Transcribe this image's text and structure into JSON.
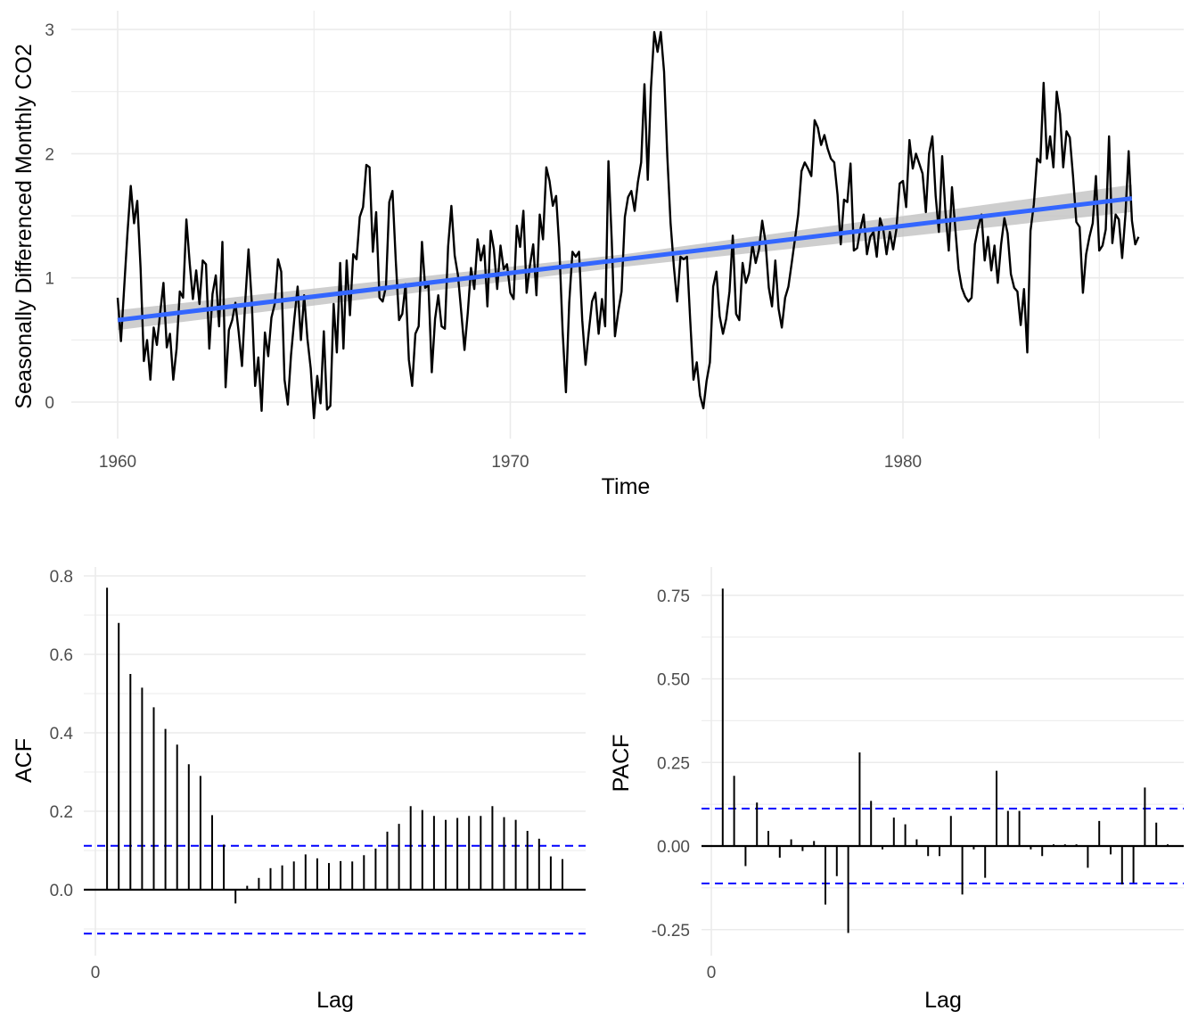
{
  "chart_data": [
    {
      "type": "line",
      "xlabel": "Time",
      "ylabel": "Seasonally Differenced Monthly CO2",
      "xlim": [
        1960,
        1986
      ],
      "ylim": [
        -0.2,
        3.1
      ],
      "x_ticks": [
        1960,
        1970,
        1980
      ],
      "x_tick_labels": [
        "1960",
        "1970",
        "1980"
      ],
      "y_ticks": [
        0,
        1,
        2,
        3
      ],
      "y_tick_labels": [
        "0",
        "1",
        "2",
        "3"
      ],
      "grid": true,
      "series_colors": [
        "#000000",
        "#3366FF",
        "#BEBEBE"
      ],
      "series": [
        {
          "start": 1960.0,
          "step": 0.08333,
          "values": [
            0.84,
            0.49,
            0.92,
            1.36,
            1.74,
            1.44,
            1.62,
            1.08,
            0.33,
            0.5,
            0.18,
            0.6,
            0.46,
            0.72,
            0.96,
            0.44,
            0.55,
            0.18,
            0.43,
            0.89,
            0.84,
            1.47,
            1.12,
            0.83,
            1.06,
            0.79,
            1.14,
            1.11,
            0.43,
            0.87,
            1.02,
            0.61,
            1.29,
            0.12,
            0.58,
            0.66,
            0.8,
            0.56,
            0.29,
            0.82,
            1.23,
            0.8,
            0.13,
            0.36,
            -0.07,
            0.56,
            0.37,
            0.68,
            0.79,
            1.15,
            1.05,
            0.18,
            -0.02,
            0.38,
            0.67,
            0.93,
            0.5,
            0.86,
            0.51,
            0.27,
            -0.13,
            0.21,
            -0.01,
            0.57,
            -0.06,
            -0.03,
            0.79,
            0.4,
            1.12,
            0.43,
            1.14,
            0.7,
            1.19,
            1.15,
            1.49,
            1.57,
            1.91,
            1.89,
            1.21,
            1.53,
            0.84,
            0.81,
            0.93,
            1.61,
            1.7,
            1.14,
            0.66,
            0.71,
            0.95,
            0.34,
            0.13,
            0.55,
            0.61,
            1.29,
            0.92,
            0.94,
            0.24,
            0.67,
            0.86,
            0.61,
            0.59,
            1.25,
            1.58,
            1.18,
            1.02,
            0.73,
            0.42,
            0.72,
            1.08,
            0.91,
            1.31,
            1.14,
            1.26,
            0.77,
            1.38,
            1.23,
            0.91,
            1.26,
            1.07,
            1.11,
            0.88,
            0.83,
            1.42,
            1.25,
            1.54,
            0.88,
            1.1,
            1.27,
            0.86,
            1.51,
            1.31,
            1.89,
            1.78,
            1.58,
            1.66,
            1.24,
            0.57,
            0.08,
            0.8,
            1.21,
            1.17,
            1.21,
            0.66,
            0.3,
            0.57,
            0.81,
            0.88,
            0.55,
            0.83,
            0.61,
            1.94,
            1.3,
            0.53,
            0.73,
            0.89,
            1.49,
            1.65,
            1.7,
            1.54,
            1.77,
            1.93,
            2.56,
            1.79,
            2.53,
            2.98,
            2.82,
            2.98,
            2.66,
            1.97,
            1.44,
            1.09,
            0.81,
            1.17,
            1.15,
            1.17,
            0.65,
            0.18,
            0.32,
            0.05,
            -0.05,
            0.17,
            0.32,
            0.93,
            1.05,
            0.69,
            0.55,
            0.67,
            0.89,
            1.34,
            0.71,
            0.66,
            1.12,
            0.96,
            1.04,
            1.27,
            1.12,
            1.23,
            1.46,
            1.29,
            0.92,
            0.77,
            1.14,
            0.75,
            0.6,
            0.84,
            0.93,
            1.12,
            1.31,
            1.51,
            1.86,
            1.93,
            1.88,
            1.82,
            2.27,
            2.21,
            2.07,
            2.15,
            2.04,
            1.96,
            1.93,
            1.67,
            1.27,
            1.63,
            1.61,
            1.92,
            1.22,
            1.24,
            1.39,
            1.51,
            1.19,
            1.33,
            1.37,
            1.17,
            1.48,
            1.39,
            1.19,
            1.37,
            1.23,
            1.39,
            1.76,
            1.78,
            1.57,
            2.11,
            1.88,
            2.0,
            1.92,
            1.84,
            1.53,
            2.0,
            2.14,
            1.66,
            1.37,
            1.98,
            1.53,
            1.22,
            1.73,
            1.4,
            1.07,
            0.92,
            0.85,
            0.81,
            0.84,
            1.27,
            1.41,
            1.51,
            1.14,
            1.33,
            1.06,
            1.26,
            0.96,
            1.27,
            1.48,
            1.36,
            1.03,
            0.92,
            0.89,
            0.62,
            0.91,
            0.4,
            1.38,
            1.59,
            1.96,
            1.93,
            2.57,
            1.96,
            2.14,
            1.89,
            2.5,
            2.32,
            1.89,
            2.18,
            2.13,
            1.82,
            1.45,
            1.41,
            0.88,
            1.19,
            1.33,
            1.44,
            1.82,
            1.22,
            1.26,
            1.39,
            2.14,
            1.28,
            1.51,
            1.47,
            1.16,
            1.51,
            2.02,
            1.46,
            1.27,
            1.33
          ]
        },
        {
          "name": "",
          "x": [
            1960.0,
            1985.83
          ],
          "y": [
            0.66,
            1.64
          ]
        },
        {
          "name": "",
          "x": [
            1960.0,
            1972.9,
            1985.83
          ],
          "lower": [
            0.58,
            1.09,
            1.53
          ],
          "upper": [
            0.74,
            1.19,
            1.75
          ]
        }
      ]
    },
    {
      "type": "bar",
      "xlabel": "Lag",
      "ylabel": "ACF",
      "xlim": [
        0,
        42
      ],
      "ylim": [
        -0.13,
        0.82
      ],
      "x_ticks": [
        0
      ],
      "x_tick_labels": [
        "0"
      ],
      "y_ticks": [
        0.0,
        0.2,
        0.4,
        0.6,
        0.8
      ],
      "y_tick_labels": [
        "0.0",
        "0.2",
        "0.4",
        "0.6",
        "0.8"
      ],
      "grid": true,
      "confidence_band": 0.112,
      "lags": [
        1,
        2,
        3,
        4,
        5,
        6,
        7,
        8,
        9,
        10,
        11,
        12,
        13,
        14,
        15,
        16,
        17,
        18,
        19,
        20,
        21,
        22,
        23,
        24,
        25,
        26,
        27,
        28,
        29,
        30,
        31,
        32,
        33,
        34,
        35,
        36,
        37,
        38,
        39,
        40
      ],
      "values": [
        0.77,
        0.68,
        0.55,
        0.515,
        0.465,
        0.41,
        0.37,
        0.32,
        0.29,
        0.19,
        0.115,
        -0.035,
        0.01,
        0.03,
        0.055,
        0.062,
        0.072,
        0.09,
        0.08,
        0.068,
        0.073,
        0.072,
        0.088,
        0.105,
        0.148,
        0.168,
        0.213,
        0.203,
        0.188,
        0.178,
        0.183,
        0.188,
        0.188,
        0.213,
        0.185,
        0.178,
        0.15,
        0.13,
        0.085,
        0.078
      ]
    },
    {
      "type": "bar",
      "xlabel": "Lag",
      "ylabel": "PACF",
      "xlim": [
        0,
        40
      ],
      "ylim": [
        -0.29,
        0.82
      ],
      "x_ticks": [
        0
      ],
      "x_tick_labels": [
        "0"
      ],
      "y_ticks": [
        -0.25,
        0.0,
        0.25,
        0.5,
        0.75
      ],
      "y_tick_labels": [
        "-0.25",
        "0.00",
        "0.25",
        "0.50",
        "0.75"
      ],
      "grid": true,
      "confidence_band": 0.112,
      "lags": [
        1,
        2,
        3,
        4,
        5,
        6,
        7,
        8,
        9,
        10,
        11,
        12,
        13,
        14,
        15,
        16,
        17,
        18,
        19,
        20,
        21,
        22,
        23,
        24,
        25,
        26,
        27,
        28,
        29,
        30,
        31,
        32,
        33,
        34,
        35,
        36,
        37,
        38,
        39,
        40
      ],
      "values": [
        0.77,
        0.21,
        -0.06,
        0.13,
        0.045,
        -0.035,
        0.02,
        -0.015,
        0.015,
        -0.175,
        -0.09,
        -0.26,
        0.28,
        0.135,
        -0.01,
        0.085,
        0.065,
        0.02,
        -0.03,
        -0.03,
        0.09,
        -0.145,
        -0.01,
        -0.095,
        0.225,
        0.105,
        0.105,
        -0.01,
        -0.03,
        0.005,
        0.005,
        0.005,
        -0.065,
        0.075,
        -0.025,
        -0.115,
        -0.11,
        0.175,
        0.07,
        0.005
      ]
    }
  ]
}
